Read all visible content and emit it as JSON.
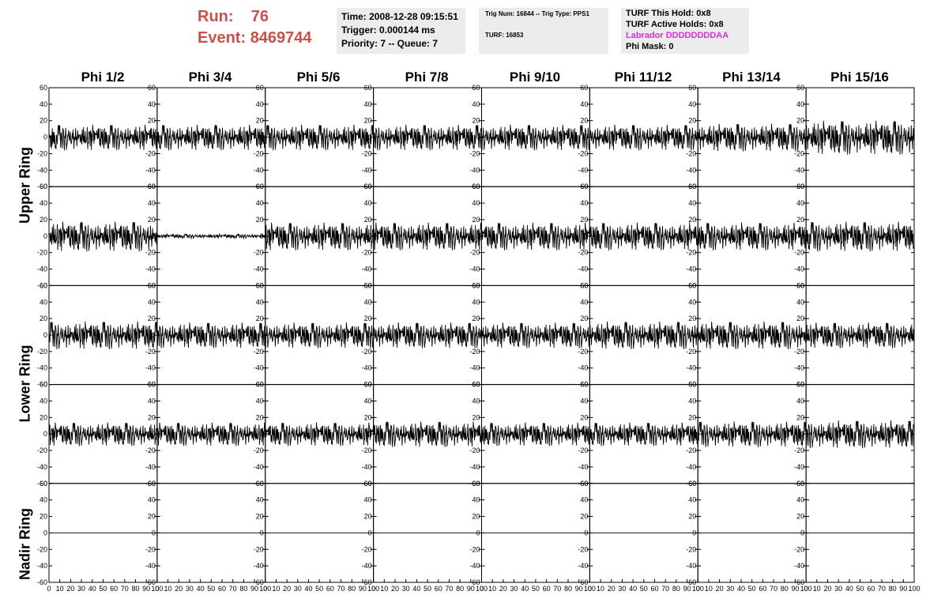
{
  "header": {
    "run_label": "Run:",
    "run_value": "76",
    "event_label": "Event:",
    "event_value": "8469744",
    "time_line": "Time: 2008-12-28 09:15:51",
    "trigger_line": "Trigger: 0.000144 ms",
    "priority_line": "Priority: 7 -- Queue: 7",
    "trig_line": "Trig Num: 16844 -- Trig Type: PPS1",
    "turf_line": "TURF: 16853",
    "turf_hold_line": "TURF This Hold: 0x8",
    "turf_active_line": "TURF Active Holds: 0x8",
    "labrador_line": "Labrador DDDDDDDDAA",
    "phi_mask_line": "Phi Mask: 0"
  },
  "phi_titles": [
    "Phi 1/2",
    "Phi 3/4",
    "Phi 5/6",
    "Phi 7/8",
    "Phi 9/10",
    "Phi 11/12",
    "Phi 13/14",
    "Phi 15/16"
  ],
  "ring_labels": [
    "Upper Ring",
    "Lower Ring",
    "Nadir Ring"
  ],
  "colors": {
    "run_text": "#c8514a",
    "info_bg": "#ececec",
    "labrador": "#e02ee0",
    "trace": "#000000"
  },
  "chart_data": {
    "type": "line",
    "grid_rows": 5,
    "grid_cols": 8,
    "xlim": [
      0,
      100
    ],
    "ylim": [
      -60,
      60
    ],
    "y_ticks": [
      -60,
      -40,
      -20,
      0,
      20,
      40,
      60
    ],
    "x_ticks": [
      0,
      10,
      20,
      30,
      40,
      50,
      60,
      70,
      80,
      90,
      100
    ],
    "y_tick_labels": [
      "-60",
      "-40",
      "-20",
      "0",
      "20",
      "40",
      "60"
    ],
    "x_tick_labels": [
      "0",
      "10",
      "20",
      "30",
      "40",
      "50",
      "60",
      "70",
      "80",
      "90",
      "100"
    ],
    "panel_amplitudes": [
      [
        12,
        12,
        12,
        12,
        12,
        12,
        13,
        16
      ],
      [
        14,
        2,
        13,
        13,
        13,
        13,
        13,
        14
      ],
      [
        13,
        12,
        12,
        12,
        12,
        13,
        13,
        12
      ],
      [
        11,
        11,
        11,
        12,
        11,
        11,
        12,
        13
      ],
      [
        0,
        0,
        0,
        0,
        0,
        0,
        0,
        0
      ]
    ]
  }
}
